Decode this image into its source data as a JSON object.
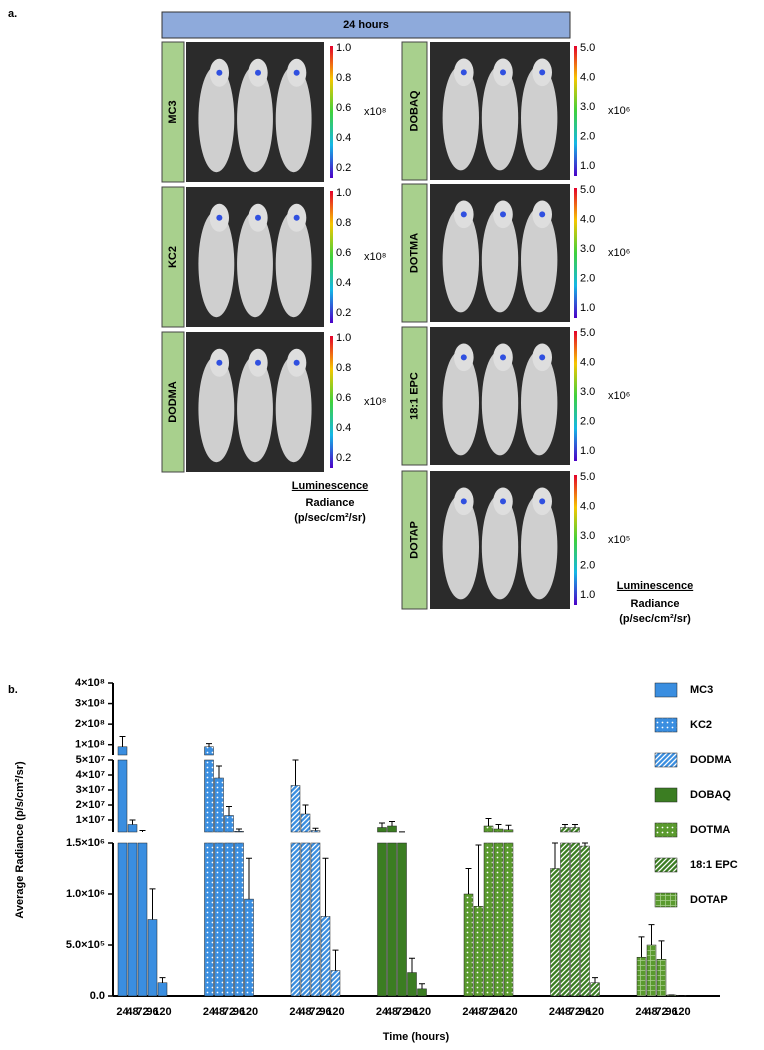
{
  "panel_a": {
    "label": "a.",
    "header": "24 hours",
    "left_panels": [
      {
        "name": "MC3",
        "scale_ticks": [
          "1.0",
          "0.8",
          "0.6",
          "0.4",
          "0.2"
        ],
        "multiplier": "x10⁸"
      },
      {
        "name": "KC2",
        "scale_ticks": [
          "1.0",
          "0.8",
          "0.6",
          "0.4",
          "0.2"
        ],
        "multiplier": "x10⁸"
      },
      {
        "name": "DODMA",
        "scale_ticks": [
          "1.0",
          "0.8",
          "0.6",
          "0.4",
          "0.2"
        ],
        "multiplier": "x10⁸"
      }
    ],
    "right_panels": [
      {
        "name": "DOBAQ",
        "scale_ticks": [
          "5.0",
          "4.0",
          "3.0",
          "2.0",
          "1.0"
        ],
        "multiplier": "x10⁶"
      },
      {
        "name": "DOTMA",
        "scale_ticks": [
          "5.0",
          "4.0",
          "3.0",
          "2.0",
          "1.0"
        ],
        "multiplier": "x10⁶"
      },
      {
        "name": "18:1 EPC",
        "scale_ticks": [
          "5.0",
          "4.0",
          "3.0",
          "2.0",
          "1.0"
        ],
        "multiplier": "x10⁶"
      },
      {
        "name": "DOTAP",
        "scale_ticks": [
          "5.0",
          "4.0",
          "3.0",
          "2.0",
          "1.0"
        ],
        "multiplier": "x10⁵"
      }
    ],
    "left_legend": {
      "title": "Luminescence",
      "line1": "Radiance",
      "line2": "(p/sec/cm²/sr)"
    },
    "right_legend": {
      "title": "Luminescence",
      "line1": "Radiance",
      "line2": "(p/sec/cm²/sr)"
    }
  },
  "chart_data": {
    "type": "bar",
    "panel_label": "b.",
    "x_label": "Time (hours)",
    "y_label": "Average Radiance (p/s/cm²/sr)",
    "categories": [
      "24",
      "48",
      "72",
      "96",
      "120"
    ],
    "y_segments": [
      {
        "ylim": [
          0,
          1500000
        ],
        "yticks": [
          {
            "value": 0,
            "label": "0.0"
          },
          {
            "value": 500000,
            "label": "5.0×10⁵"
          },
          {
            "value": 1000000,
            "label": "1.0×10⁶"
          },
          {
            "value": 1500000,
            "label": "1.5×10⁶"
          }
        ]
      },
      {
        "ylim": [
          2000000,
          50000000
        ],
        "yticks": [
          {
            "value": 10000000,
            "label": "1×10⁷"
          },
          {
            "value": 20000000,
            "label": "2×10⁷"
          },
          {
            "value": 30000000,
            "label": "3×10⁷"
          },
          {
            "value": 40000000,
            "label": "4×10⁷"
          },
          {
            "value": 50000000,
            "label": "5×10⁷"
          }
        ]
      },
      {
        "ylim": [
          50000000,
          400000000
        ],
        "yticks": [
          {
            "value": 100000000,
            "label": "1×10⁸"
          },
          {
            "value": 200000000,
            "label": "2×10⁸"
          },
          {
            "value": 300000000,
            "label": "3×10⁸"
          },
          {
            "value": 400000000,
            "label": "4×10⁸"
          }
        ]
      }
    ],
    "series": [
      {
        "name": "MC3",
        "color": "#3a8ee0",
        "pattern": "solid",
        "values": [
          90000000,
          7000000,
          2000000,
          750000,
          130000
        ],
        "errors": [
          50000000,
          3000000,
          1000000,
          300000,
          50000
        ]
      },
      {
        "name": "KC2",
        "color": "#3a8ee0",
        "pattern": "dots",
        "values": [
          90000000,
          38000000,
          13000000,
          2500000,
          950000
        ],
        "errors": [
          15000000,
          8000000,
          6000000,
          1500000,
          400000
        ]
      },
      {
        "name": "DODMA",
        "color": "#3a8ee0",
        "pattern": "stripes",
        "values": [
          33000000,
          14000000,
          3000000,
          780000,
          250000
        ],
        "errors": [
          17000000,
          6000000,
          1500000,
          570000,
          200000
        ]
      },
      {
        "name": "DOBAQ",
        "color": "#3b7d22",
        "pattern": "solid",
        "values": [
          5000000,
          6000000,
          1800000,
          230000,
          70000
        ],
        "errors": [
          3000000,
          3000000,
          300000,
          140000,
          50000
        ]
      },
      {
        "name": "DOTMA",
        "color": "#5a9a2e",
        "pattern": "dots",
        "values": [
          1000000,
          880000,
          6000000,
          4000000,
          3500000
        ],
        "errors": [
          250000,
          600000,
          5000000,
          3000000,
          3000000
        ]
      },
      {
        "name": "18:1 EPC",
        "color": "#3b7d22",
        "pattern": "stripes",
        "values": [
          1250000,
          5000000,
          5000000,
          1470000,
          130000
        ],
        "errors": [
          250000,
          2000000,
          2000000,
          30000,
          50000
        ]
      },
      {
        "name": "DOTAP",
        "color": "#5a9a2e",
        "pattern": "grid",
        "values": [
          380000,
          500000,
          360000,
          10000,
          5000
        ],
        "errors": [
          200000,
          200000,
          180000,
          0,
          0
        ]
      }
    ]
  }
}
